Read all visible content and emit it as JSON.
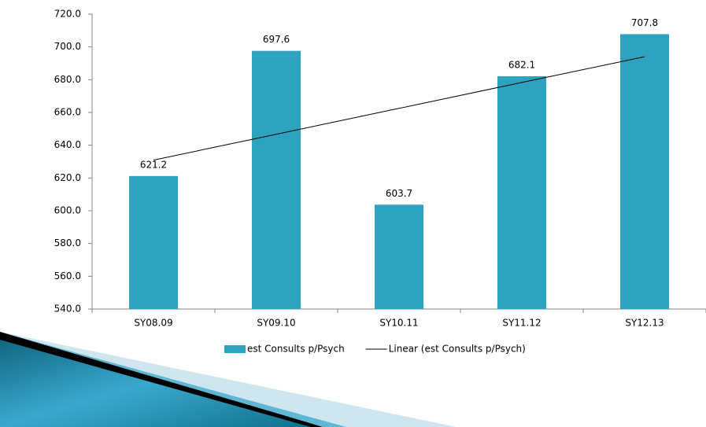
{
  "chart_data": {
    "type": "bar",
    "categories": [
      "SY08.09",
      "SY09.10",
      "SY10.11",
      "SY11.12",
      "SY12.13"
    ],
    "series": [
      {
        "name": "est Consults p/Psych",
        "type": "bar",
        "color": "#2ea3bf",
        "values": [
          621.2,
          697.6,
          603.7,
          682.1,
          707.8
        ]
      },
      {
        "name": "Linear (est Consults p/Psych)",
        "type": "line",
        "color": "#000000",
        "values": [
          630.9,
          646.7,
          662.5,
          678.3,
          694.0
        ]
      }
    ],
    "ylim": [
      540,
      720
    ],
    "yticks": [
      {
        "value": 540,
        "label": "540.0"
      },
      {
        "value": 560,
        "label": "560.0"
      },
      {
        "value": 580,
        "label": "580.0"
      },
      {
        "value": 600,
        "label": "600.0"
      },
      {
        "value": 620,
        "label": "620.0"
      },
      {
        "value": 640,
        "label": "640.0"
      },
      {
        "value": 660,
        "label": "660.0"
      },
      {
        "value": 680,
        "label": "680.0"
      },
      {
        "value": 700,
        "label": "700.0"
      },
      {
        "value": 720,
        "label": "720.0"
      }
    ],
    "grid": false
  }
}
